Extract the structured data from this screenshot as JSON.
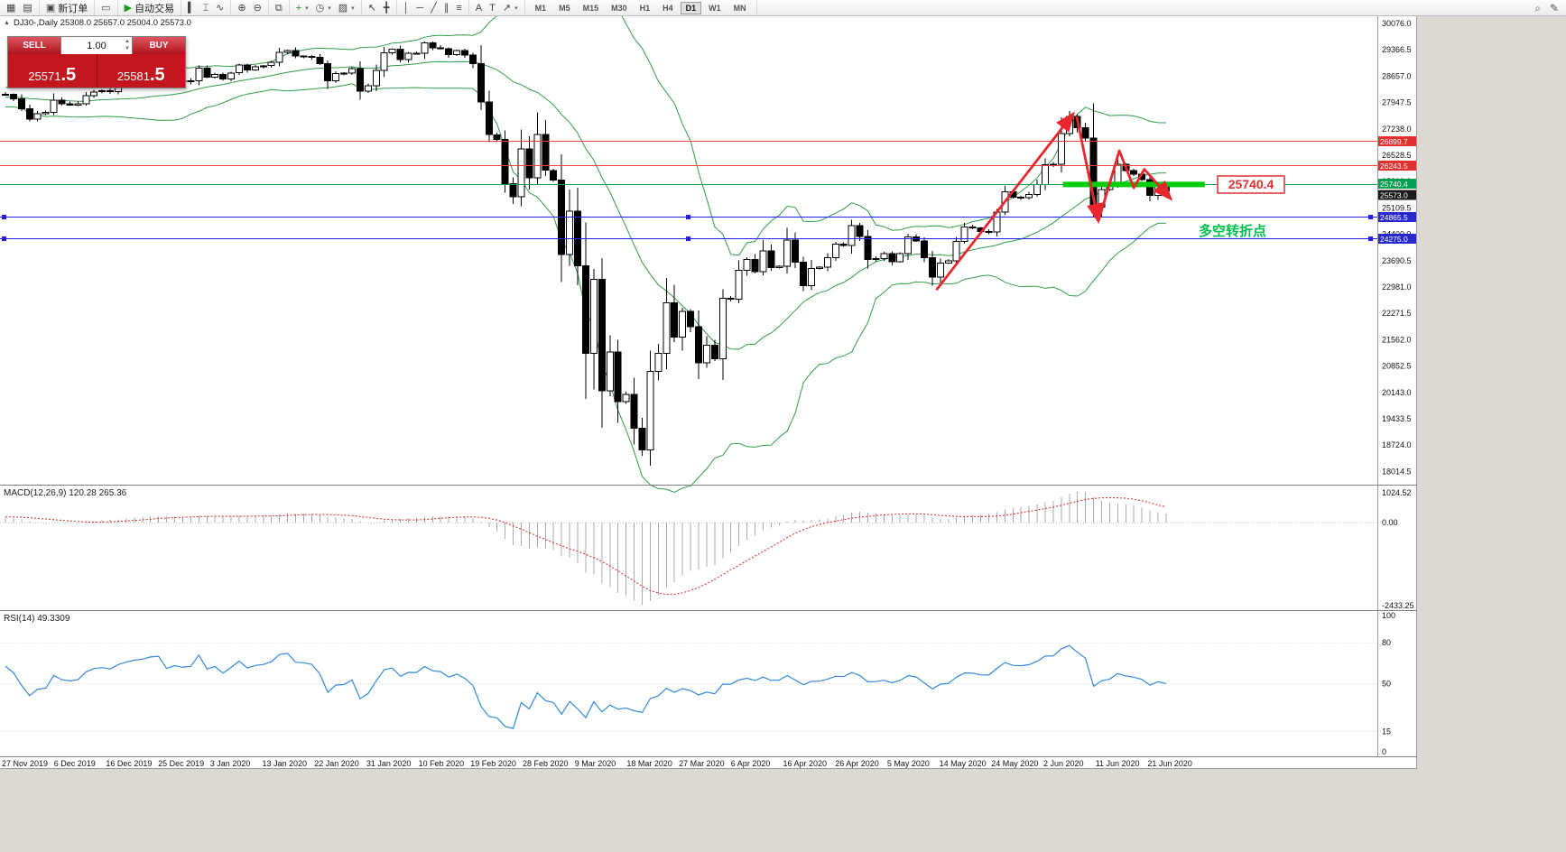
{
  "toolbar": {
    "groups": [
      {
        "items": [
          {
            "name": "new-chart",
            "glyph": "▦"
          },
          {
            "name": "chart-profiles",
            "glyph": "▤"
          }
        ]
      },
      {
        "items": [
          {
            "name": "new-order",
            "glyph": "▣",
            "label": "新订单"
          }
        ]
      },
      {
        "items": [
          {
            "name": "charts-list",
            "glyph": "▭"
          }
        ]
      },
      {
        "items": [
          {
            "name": "expert-advisors",
            "glyph": "▶",
            "glyph_color": "#1a9a1a",
            "label": "自动交易"
          }
        ]
      },
      {
        "items": [
          {
            "name": "bar-chart",
            "glyph": "▍"
          },
          {
            "name": "candlestick-chart",
            "glyph": "⌶"
          },
          {
            "name": "line-chart",
            "glyph": "∿"
          }
        ]
      },
      {
        "items": [
          {
            "name": "zoom-in",
            "glyph": "⊕"
          },
          {
            "name": "zoom-out",
            "glyph": "⊖"
          }
        ]
      },
      {
        "items": [
          {
            "name": "tile-windows",
            "glyph": "⧉"
          }
        ]
      },
      {
        "items": [
          {
            "name": "indicators",
            "glyph": "+",
            "glyph_color": "#1a9a1a",
            "dropdown": true
          },
          {
            "name": "periods",
            "glyph": "◷",
            "dropdown": true
          },
          {
            "name": "templates",
            "glyph": "▨",
            "dropdown": true
          }
        ]
      },
      {
        "items": [
          {
            "name": "cursor",
            "glyph": "↖"
          },
          {
            "name": "crosshair",
            "glyph": "╋"
          }
        ]
      },
      {
        "items": [
          {
            "name": "vertical-line",
            "glyph": "│"
          },
          {
            "name": "horizontal-line",
            "glyph": "─"
          },
          {
            "name": "trendline",
            "glyph": "╱"
          },
          {
            "name": "equidistant-channel",
            "glyph": "∥"
          },
          {
            "name": "fibonacci",
            "glyph": "≡"
          }
        ]
      },
      {
        "items": [
          {
            "name": "text",
            "glyph": "A"
          },
          {
            "name": "text-label",
            "glyph": "T"
          },
          {
            "name": "arrows",
            "glyph": "↗",
            "dropdown": true
          }
        ]
      }
    ],
    "timeframes": [
      "M1",
      "M5",
      "M15",
      "M30",
      "H1",
      "H4",
      "D1",
      "W1",
      "MN"
    ],
    "active_timeframe": "D1",
    "right_items": [
      {
        "name": "search",
        "glyph": "⌕"
      },
      {
        "name": "edit",
        "glyph": "✎"
      }
    ]
  },
  "chart_header": {
    "marker": "▲",
    "text": "DJ30-,Daily  25308.0 25657.0 25004.0 25573.0"
  },
  "trade_panel": {
    "sell_label": "SELL",
    "buy_label": "BUY",
    "volume": "1.00",
    "spin_up": "▲",
    "spin_down": "▼",
    "sell_price": "25571",
    "sell_price_big": ".5",
    "buy_price": "25581",
    "buy_price_big": ".5"
  },
  "indicators": {
    "macd_label": "MACD(12,26,9) 120.28 265.36",
    "macd_scale": [
      "1024.52",
      "0.00",
      "-2433.25"
    ],
    "rsi_label": "RSI(14) 49.3309",
    "rsi_scale": [
      "100",
      "80",
      "50",
      "15",
      "0"
    ],
    "rsi_levels": [
      80,
      50,
      15
    ]
  },
  "annotations": {
    "price_callout": "25740.4",
    "turning_point": "多空转折点",
    "thick_segment": {
      "price": 25740.4,
      "from_index": 131.2,
      "to_index": 148.8,
      "color": "#00cc0c",
      "thickness": 6
    },
    "arrows": [
      {
        "name": "rally-arrow",
        "points": [
          [
            115.5,
            22900
          ],
          [
            132.5,
            27650
          ]
        ]
      },
      {
        "name": "drop-arrow",
        "points": [
          [
            132.9,
            27570
          ],
          [
            135.6,
            24750
          ]
        ]
      },
      {
        "name": "zigzag-arrow",
        "points": [
          [
            135.6,
            24750
          ],
          [
            138.2,
            26650
          ],
          [
            140.0,
            25650
          ],
          [
            141.3,
            26150
          ],
          [
            144.6,
            25350
          ]
        ]
      }
    ],
    "arrow_color": "#e8262d"
  },
  "chart_data": {
    "type": "candlestick",
    "symbol": "DJ30-",
    "timeframe": "Daily",
    "visible_ohlc_header": {
      "open": "25308.0",
      "high": "25657.0",
      "low": "25004.0",
      "close": "25573.0"
    },
    "price_axis_labels": [
      "30076.0",
      "29366.5",
      "28657.0",
      "27947.5",
      "27238.0",
      "26528.5",
      "25819.0",
      "25109.5",
      "24400.0",
      "23690.5",
      "22981.0",
      "22271.5",
      "21562.0",
      "20852.5",
      "20143.0",
      "19433.5",
      "18724.0",
      "18014.5"
    ],
    "date_axis_labels": [
      "27 Nov 2019",
      "6 Dec 2019",
      "16 Dec 2019",
      "25 Dec 2019",
      "3 Jan 2020",
      "13 Jan 2020",
      "22 Jan 2020",
      "31 Jan 2020",
      "10 Feb 2020",
      "19 Feb 2020",
      "28 Feb 2020",
      "9 Mar 2020",
      "18 Mar 2020",
      "27 Mar 2020",
      "6 Apr 2020",
      "16 Apr 2020",
      "26 Apr 2020",
      "5 May 2020",
      "14 May 2020",
      "24 May 2020",
      "2 Jun 2020",
      "11 Jun 2020",
      "21 Jun 2020"
    ],
    "warmup_closes": [
      27347,
      27462,
      27493,
      27674,
      27691,
      27783,
      28004,
      28010,
      28036,
      27934,
      28045,
      28335,
      28004,
      28066,
      28121,
      28051,
      27821,
      27897,
      28164,
      28174,
      28239,
      28363,
      28121,
      28101,
      28164
    ],
    "closes": [
      28164,
      28051,
      27783,
      27502,
      27650,
      27677,
      28015,
      27909,
      27881,
      27911,
      28132,
      28235,
      28267,
      28239,
      28376,
      28455,
      28515,
      28551,
      28621,
      28645,
      28462,
      28538,
      28511,
      28538,
      28869,
      28635,
      28704,
      28584,
      28745,
      28957,
      28824,
      28907,
      28939,
      29030,
      29297,
      29348,
      29196,
      29186,
      29160,
      28990,
      28536,
      28723,
      28734,
      28859,
      28256,
      28400,
      28808,
      29291,
      29380,
      29103,
      29277,
      29276,
      29551,
      29423,
      29398,
      29232,
      29348,
      29220,
      28992,
      27961,
      27081,
      26958,
      25767,
      25409,
      26703,
      25917,
      27091,
      26121,
      25865,
      23851,
      25018,
      23553,
      21201,
      23186,
      20189,
      21237,
      19899,
      20087,
      19174,
      18592,
      20705,
      21200,
      22552,
      21637,
      22327,
      21917,
      20944,
      21413,
      21053,
      22680,
      22654,
      23434,
      23719,
      23391,
      23950,
      23504,
      23538,
      24242,
      23651,
      23019,
      23476,
      23515,
      23775,
      24134,
      24102,
      24634,
      24346,
      23724,
      23750,
      23883,
      23665,
      23876,
      24331,
      24222,
      23765,
      23248,
      23625,
      23685,
      24207,
      24597,
      24576,
      24474,
      24465,
      24995,
      25548,
      25401,
      25383,
      25475,
      25743,
      26270,
      26282,
      27111,
      27572,
      27273,
      26990,
      25128,
      25606,
      25763,
      26290,
      26120,
      26024,
      25871,
      25446,
      25706,
      25573
    ],
    "bollinger": {
      "period": 20,
      "deviation": 2,
      "color": "#2f9e44"
    },
    "hlines": [
      {
        "price": 26899.7,
        "color": "#f04040",
        "markers": false
      },
      {
        "price": 26243.5,
        "color": "#f04040",
        "markers": false
      },
      {
        "price": 25740.4,
        "color": "#00a050",
        "markers": false
      },
      {
        "price": 24865.5,
        "color": "#2222e6",
        "markers": true
      },
      {
        "price": 24275.0,
        "color": "#2222e6",
        "markers": true
      }
    ],
    "price_tags": [
      {
        "text": "26899.7",
        "price": 26899.7,
        "bg": "#e03131",
        "dy": 0
      },
      {
        "text": "26243.5",
        "price": 26243.5,
        "bg": "#e03131",
        "dy": 0
      },
      {
        "text": "25740.4",
        "price": 25740.4,
        "bg": "#00a050",
        "dy": -1
      },
      {
        "text": "25573.0",
        "price": 25573.0,
        "bg": "#1a1a1a",
        "dy": 4.5
      },
      {
        "text": "24865.5",
        "price": 24865.5,
        "bg": "#2828cc",
        "dy": 0
      },
      {
        "text": "24275.0",
        "price": 24275.0,
        "bg": "#2828cc",
        "dy": 0
      }
    ]
  }
}
